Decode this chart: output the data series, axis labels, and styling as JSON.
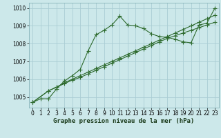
{
  "xlabel": "Graphe pression niveau de la mer (hPa)",
  "background_color": "#cce8ea",
  "line_color": "#2d6a2d",
  "grid_color": "#aacdd4",
  "ylim": [
    1004.4,
    1010.3
  ],
  "xlim": [
    -0.5,
    23.5
  ],
  "yticks": [
    1005,
    1006,
    1007,
    1008,
    1009,
    1010
  ],
  "xticks": [
    0,
    1,
    2,
    3,
    4,
    5,
    6,
    7,
    8,
    9,
    10,
    11,
    12,
    13,
    14,
    15,
    16,
    17,
    18,
    19,
    20,
    21,
    22,
    23
  ],
  "series1_x": [
    0,
    1,
    2,
    3,
    4,
    5,
    6,
    7,
    8,
    9,
    10,
    11,
    12,
    13,
    14,
    15,
    16,
    17,
    18,
    19,
    20,
    21,
    22,
    23
  ],
  "series1_y": [
    1004.7,
    1004.9,
    1004.9,
    1005.45,
    1005.9,
    1006.2,
    1006.55,
    1007.6,
    1008.5,
    1008.75,
    1009.05,
    1009.55,
    1009.05,
    1009.0,
    1008.85,
    1008.55,
    1008.4,
    1008.35,
    1008.25,
    1008.1,
    1008.05,
    1009.05,
    1009.15,
    1010.0
  ],
  "series2_x": [
    0,
    2,
    3,
    4,
    5,
    6,
    7,
    8,
    9,
    10,
    11,
    12,
    13,
    14,
    15,
    16,
    17,
    18,
    19,
    20,
    21,
    22,
    23
  ],
  "series2_y": [
    1004.7,
    1005.35,
    1005.55,
    1005.75,
    1005.95,
    1006.1,
    1006.3,
    1006.5,
    1006.7,
    1006.9,
    1007.1,
    1007.3,
    1007.5,
    1007.7,
    1007.9,
    1008.1,
    1008.3,
    1008.45,
    1008.6,
    1008.75,
    1008.9,
    1009.05,
    1009.2
  ],
  "series3_x": [
    0,
    2,
    3,
    4,
    5,
    6,
    7,
    8,
    9,
    10,
    11,
    12,
    13,
    14,
    15,
    16,
    17,
    18,
    19,
    20,
    21,
    22,
    23
  ],
  "series3_y": [
    1004.7,
    1005.35,
    1005.55,
    1005.8,
    1006.0,
    1006.2,
    1006.4,
    1006.6,
    1006.8,
    1007.0,
    1007.2,
    1007.4,
    1007.6,
    1007.8,
    1008.0,
    1008.2,
    1008.4,
    1008.6,
    1008.8,
    1009.0,
    1009.2,
    1009.4,
    1009.6
  ],
  "xlabel_fontsize": 6.5,
  "tick_fontsize": 5.5
}
